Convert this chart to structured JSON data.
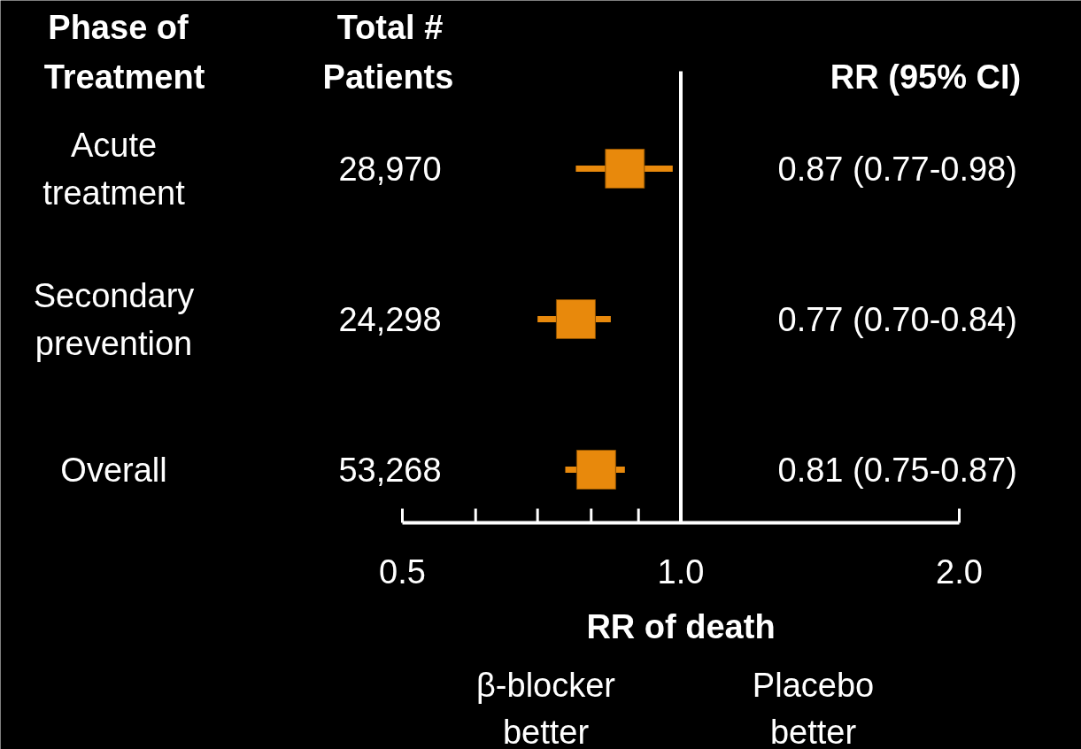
{
  "chart_data": {
    "type": "scatter",
    "orientation": "horizontal",
    "ylabel": "Phase of Treatment",
    "xlabel": "RR of death",
    "categories": [
      "Acute treatment",
      "Secondary prevention",
      "Overall"
    ],
    "values": [
      0.87,
      0.77,
      0.81
    ],
    "errors": [
      [
        0.77,
        0.98
      ],
      [
        0.7,
        0.84
      ],
      [
        0.75,
        0.87
      ]
    ],
    "color": "#e8890c",
    "marker": "square",
    "log": "x",
    "grid": false,
    "xlim": [
      0.5,
      2.0
    ],
    "xticks": [
      0.5,
      {
        "value": 0.6,
        "label": null
      },
      {
        "value": 0.7,
        "label": null
      },
      {
        "value": 0.8,
        "label": null
      },
      {
        "value": 0.9,
        "label": null
      },
      {
        "value": 1.0,
        "label": "1.0"
      },
      {
        "value": 2.0,
        "label": "2.0"
      }
    ],
    "ref_lines": [
      {
        "axis": "x",
        "value": 1.0,
        "color": "#ffffff"
      }
    ],
    "annotations": [
      "Total # Patients",
      "28,970",
      "24,298",
      "53,268",
      "RR (95% CI)",
      "0.87 (0.77-0.98)",
      "0.77 (0.70-0.84)",
      "0.81 (0.75-0.87)",
      "β-blocker better",
      "Placebo better"
    ]
  }
}
